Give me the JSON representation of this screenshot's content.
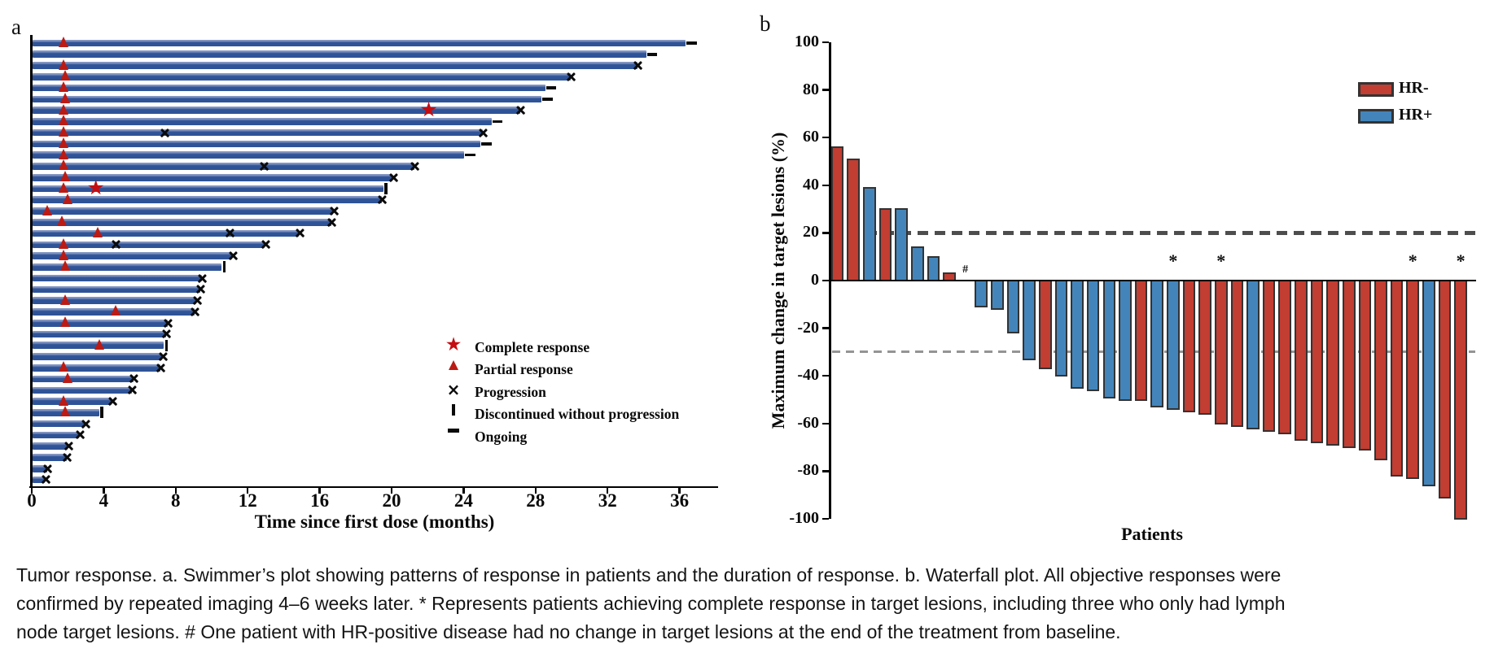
{
  "caption": {
    "lines": [
      "Tumor response. a. Swimmer’s plot showing patterns of response in patients and the duration of response. b. Waterfall plot. All objective responses were",
      "confirmed by repeated imaging 4–6 weeks later. * Represents patients achieving complete response in target lesions, including three who only had lymph",
      "node target lesions. # One patient with HR-positive disease had no change in target lesions at the end of the treatment from baseline."
    ]
  },
  "colors": {
    "swimmer_bar": "#2f5397",
    "hr_negative": "#c23d32",
    "hr_positive": "#4385bb",
    "bar_border": "#333333",
    "response_marker_red": "#c40d12",
    "reference_line_20": "#4d4d4d",
    "reference_line_neg30": "#949494",
    "axis": "#000000"
  },
  "chart_data": [
    {
      "type": "swimmer",
      "panel_label": "a",
      "xlabel": "Time since first dose (months)",
      "xlim": [
        0,
        38.2
      ],
      "xticks": [
        0,
        4,
        8,
        12,
        16,
        20,
        24,
        28,
        32,
        36
      ],
      "legend": [
        {
          "marker": "star",
          "label": "Complete response"
        },
        {
          "marker": "triangle",
          "label": "Partial response"
        },
        {
          "marker": "x",
          "label": "Progression"
        },
        {
          "marker": "vbar",
          "label": "Discontinued without progression"
        },
        {
          "marker": "dash",
          "label": "Ongoing"
        }
      ],
      "patients": [
        {
          "duration": 36.3,
          "end": "ongoing",
          "pr": 1.8
        },
        {
          "duration": 34.1,
          "end": "ongoing"
        },
        {
          "duration": 33.6,
          "end": "progression",
          "pr": 1.8
        },
        {
          "duration": 29.9,
          "end": "progression",
          "pr": 1.9
        },
        {
          "duration": 28.5,
          "end": "ongoing",
          "pr": 1.8
        },
        {
          "duration": 28.3,
          "end": "ongoing",
          "pr": 1.9
        },
        {
          "duration": 27.1,
          "end": "progression",
          "pr": 1.8,
          "cr": 22.1
        },
        {
          "duration": 25.5,
          "end": "ongoing",
          "pr": 1.8
        },
        {
          "duration": 25.0,
          "end": "progression",
          "pr": 1.8,
          "x": [
            7.4
          ]
        },
        {
          "duration": 24.9,
          "end": "ongoing",
          "pr": 1.8
        },
        {
          "duration": 24.0,
          "end": "ongoing",
          "pr": 1.8
        },
        {
          "duration": 21.2,
          "end": "progression",
          "pr": 1.8,
          "x": [
            12.9
          ]
        },
        {
          "duration": 20.0,
          "end": "progression",
          "pr": 1.9
        },
        {
          "duration": 19.5,
          "end": "discontinued",
          "pr": 1.8,
          "cr": 3.6
        },
        {
          "duration": 19.4,
          "end": "progression",
          "pr": 2.0
        },
        {
          "duration": 16.7,
          "end": "progression",
          "pr": 0.9
        },
        {
          "duration": 16.6,
          "end": "progression",
          "pr": 1.7
        },
        {
          "duration": 14.8,
          "end": "progression",
          "pr": 3.7,
          "x": [
            11.0
          ]
        },
        {
          "duration": 12.9,
          "end": "progression",
          "pr": 1.8,
          "x": [
            4.7
          ]
        },
        {
          "duration": 11.1,
          "end": "progression",
          "pr": 1.8
        },
        {
          "duration": 10.5,
          "end": "discontinued",
          "pr": 1.9
        },
        {
          "duration": 9.4,
          "end": "progression"
        },
        {
          "duration": 9.3,
          "end": "progression"
        },
        {
          "duration": 9.1,
          "end": "progression",
          "pr": 1.9
        },
        {
          "duration": 9.0,
          "end": "progression",
          "pr": 4.7
        },
        {
          "duration": 7.5,
          "end": "progression",
          "pr": 1.9
        },
        {
          "duration": 7.4,
          "end": "progression"
        },
        {
          "duration": 7.3,
          "end": "discontinued",
          "pr": 3.8
        },
        {
          "duration": 7.2,
          "end": "progression"
        },
        {
          "duration": 7.1,
          "end": "progression",
          "pr": 1.8
        },
        {
          "duration": 5.6,
          "end": "progression",
          "pr": 2.0
        },
        {
          "duration": 5.5,
          "end": "progression"
        },
        {
          "duration": 4.4,
          "end": "progression",
          "pr": 1.8
        },
        {
          "duration": 3.7,
          "end": "discontinued",
          "pr": 1.9
        },
        {
          "duration": 2.9,
          "end": "progression"
        },
        {
          "duration": 2.6,
          "end": "progression"
        },
        {
          "duration": 1.95,
          "end": "progression"
        },
        {
          "duration": 1.9,
          "end": "progression"
        },
        {
          "duration": 0.8,
          "end": "progression"
        },
        {
          "duration": 0.7,
          "end": "progression"
        }
      ]
    },
    {
      "type": "waterfall",
      "panel_label": "b",
      "ylabel": "Maximum change in target lesions (%)",
      "xlabel": "Patients",
      "ylim": [
        -100,
        100
      ],
      "yticks": [
        100,
        80,
        60,
        40,
        20,
        0,
        -20,
        -40,
        -60,
        -80,
        -100
      ],
      "reference_lines": [
        {
          "y": 20,
          "style": "bold-dashed"
        },
        {
          "y": -30,
          "style": "light-dashed"
        }
      ],
      "legend": [
        {
          "label": "HR-",
          "color": "#c23d32"
        },
        {
          "label": "HR+",
          "color": "#4385bb"
        }
      ],
      "patients": [
        {
          "value": 56,
          "group": "HR-"
        },
        {
          "value": 51,
          "group": "HR-"
        },
        {
          "value": 39,
          "group": "HR+"
        },
        {
          "value": 30,
          "group": "HR-"
        },
        {
          "value": 30,
          "group": "HR+"
        },
        {
          "value": 14,
          "group": "HR+"
        },
        {
          "value": 10,
          "group": "HR+"
        },
        {
          "value": 3,
          "group": "HR-"
        },
        {
          "value": 0,
          "group": "HR+",
          "flag": "#"
        },
        {
          "value": -11,
          "group": "HR+"
        },
        {
          "value": -12,
          "group": "HR+"
        },
        {
          "value": -22,
          "group": "HR+"
        },
        {
          "value": -33,
          "group": "HR+"
        },
        {
          "value": -37,
          "group": "HR-"
        },
        {
          "value": -40,
          "group": "HR+"
        },
        {
          "value": -45,
          "group": "HR+"
        },
        {
          "value": -46,
          "group": "HR+"
        },
        {
          "value": -49,
          "group": "HR+"
        },
        {
          "value": -50,
          "group": "HR+"
        },
        {
          "value": -50,
          "group": "HR-"
        },
        {
          "value": -53,
          "group": "HR+"
        },
        {
          "value": -54,
          "group": "HR+",
          "flag": "*"
        },
        {
          "value": -55,
          "group": "HR-"
        },
        {
          "value": -56,
          "group": "HR-"
        },
        {
          "value": -60,
          "group": "HR-",
          "flag": "*"
        },
        {
          "value": -61,
          "group": "HR-"
        },
        {
          "value": -62,
          "group": "HR+"
        },
        {
          "value": -63,
          "group": "HR-"
        },
        {
          "value": -64,
          "group": "HR-"
        },
        {
          "value": -67,
          "group": "HR-"
        },
        {
          "value": -68,
          "group": "HR-"
        },
        {
          "value": -69,
          "group": "HR-"
        },
        {
          "value": -70,
          "group": "HR-"
        },
        {
          "value": -71,
          "group": "HR-"
        },
        {
          "value": -75,
          "group": "HR-"
        },
        {
          "value": -82,
          "group": "HR-"
        },
        {
          "value": -83,
          "group": "HR-",
          "flag": "*"
        },
        {
          "value": -86,
          "group": "HR+"
        },
        {
          "value": -91,
          "group": "HR-"
        },
        {
          "value": -100,
          "group": "HR-",
          "flag": "*"
        }
      ]
    }
  ]
}
